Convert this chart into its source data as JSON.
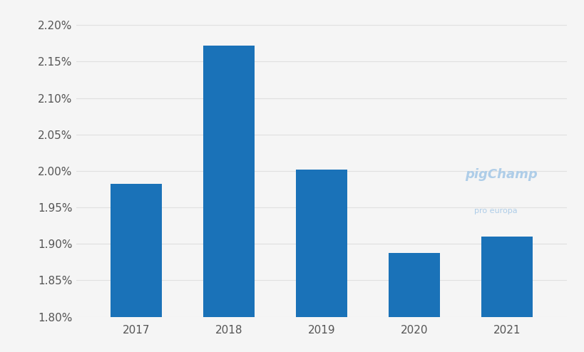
{
  "categories": [
    "2017",
    "2018",
    "2019",
    "2020",
    "2021"
  ],
  "values": [
    0.01982,
    0.02172,
    0.02002,
    0.01888,
    0.0191
  ],
  "bar_color": "#1a72b8",
  "ylim": [
    0.018,
    0.0222
  ],
  "yticks": [
    0.018,
    0.0185,
    0.019,
    0.0195,
    0.02,
    0.0205,
    0.021,
    0.0215,
    0.022
  ],
  "background_color": "#f5f5f5",
  "grid_color": "#e0e0e0",
  "tick_label_color": "#555555",
  "bar_width": 0.55,
  "figsize": [
    8.2,
    4.94
  ],
  "dpi": 100
}
